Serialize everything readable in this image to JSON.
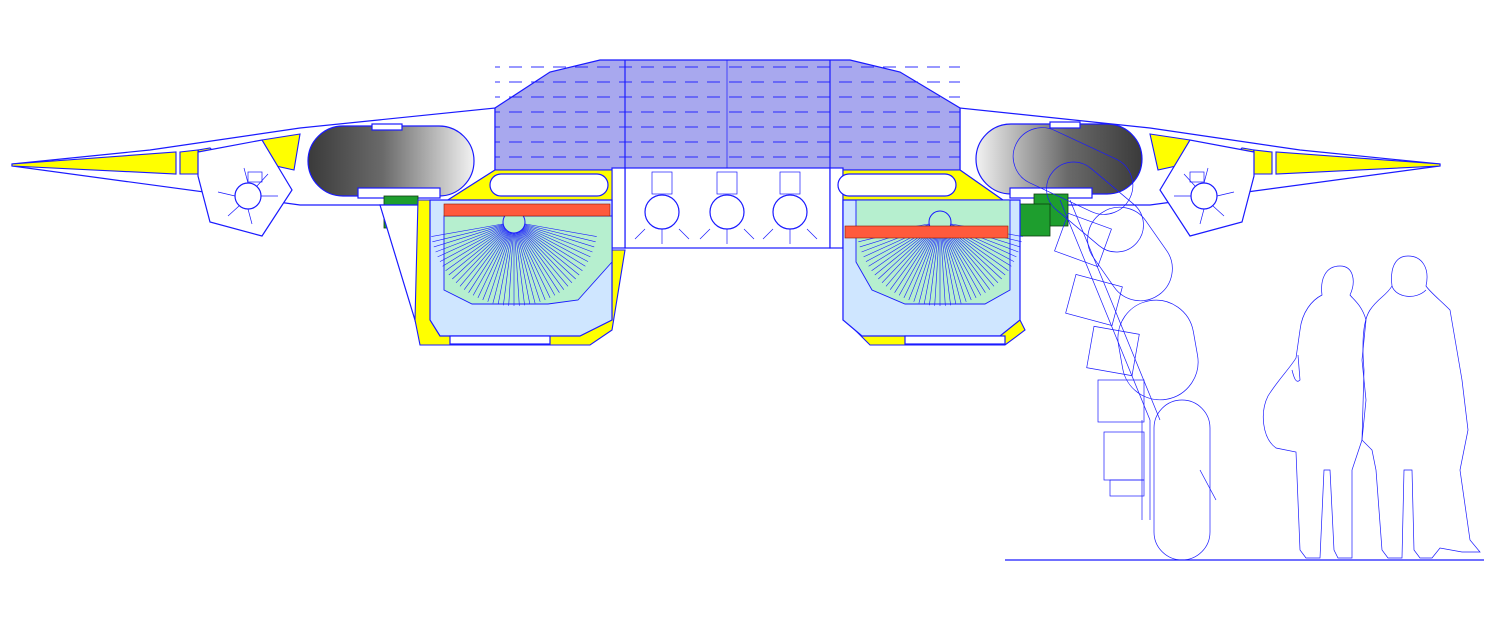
{
  "figure": {
    "colors": {
      "outline": "#1a1aff",
      "wing_tip": "#ffff00",
      "cockpit_glass": "#a8a8ee",
      "bay": "#cfe6ff",
      "turbine": "#b6efcf",
      "actuator": "#1e9e2e",
      "heater_bar": "#ff5a3c",
      "pod_shadow": "#555555"
    },
    "icons": {
      "ducted_fan": "fan-icon",
      "engine": "engine-icon",
      "person": "person-silhouette",
      "ground": "ground-line"
    }
  }
}
